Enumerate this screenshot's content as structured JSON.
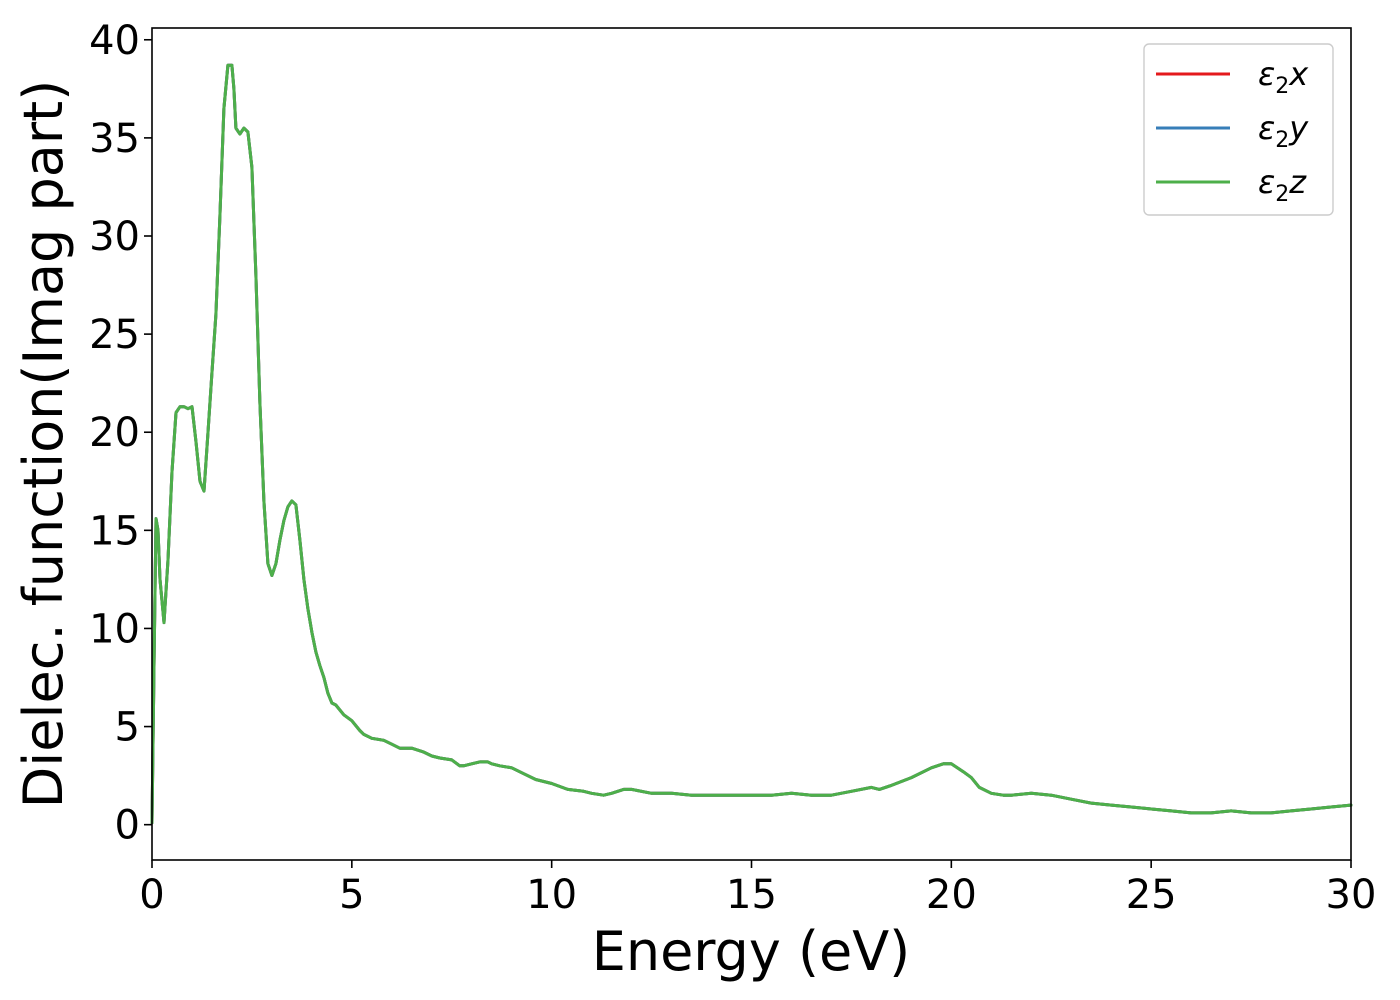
{
  "chart_data": {
    "type": "line",
    "xlabel": "Energy (eV)",
    "ylabel": "Dielec. function(Imag part)",
    "xlim": [
      0,
      30
    ],
    "ylim": [
      -1.8,
      40.6
    ],
    "xticks": [
      0,
      5,
      10,
      15,
      20,
      25,
      30
    ],
    "yticks": [
      0,
      5,
      10,
      15,
      20,
      25,
      30,
      35,
      40
    ],
    "grid": false,
    "legend_position": "top-right",
    "series": [
      {
        "name": "ε₂x",
        "label_base": "ε",
        "label_sub": "2",
        "label_var": "x",
        "color": "#e41a1c"
      },
      {
        "name": "ε₂y",
        "label_base": "ε",
        "label_sub": "2",
        "label_var": "y",
        "color": "#377eb8"
      },
      {
        "name": "ε₂z",
        "label_base": "ε",
        "label_sub": "2",
        "label_var": "z",
        "color": "#4daf4a"
      }
    ],
    "x": [
      0,
      0.05,
      0.1,
      0.15,
      0.2,
      0.3,
      0.4,
      0.5,
      0.6,
      0.7,
      0.8,
      0.9,
      1.0,
      1.1,
      1.2,
      1.3,
      1.4,
      1.5,
      1.6,
      1.7,
      1.8,
      1.9,
      2.0,
      2.05,
      2.1,
      2.2,
      2.3,
      2.4,
      2.5,
      2.6,
      2.7,
      2.8,
      2.9,
      3.0,
      3.1,
      3.2,
      3.3,
      3.4,
      3.5,
      3.6,
      3.7,
      3.8,
      3.9,
      4.0,
      4.1,
      4.2,
      4.3,
      4.4,
      4.5,
      4.6,
      4.8,
      5.0,
      5.2,
      5.3,
      5.5,
      5.8,
      6.0,
      6.2,
      6.5,
      6.8,
      7.0,
      7.2,
      7.5,
      7.7,
      7.8,
      8.0,
      8.2,
      8.4,
      8.5,
      8.7,
      9.0,
      9.3,
      9.6,
      10.0,
      10.4,
      10.8,
      11.0,
      11.3,
      11.5,
      11.8,
      12.0,
      12.5,
      13.0,
      13.5,
      14.0,
      14.5,
      15.0,
      15.5,
      16.0,
      16.5,
      17.0,
      17.5,
      18.0,
      18.2,
      18.5,
      19.0,
      19.5,
      19.8,
      20.0,
      20.3,
      20.5,
      20.7,
      21.0,
      21.3,
      21.5,
      22.0,
      22.5,
      23.0,
      23.5,
      24.0,
      24.5,
      25.0,
      25.5,
      26.0,
      26.5,
      27.0,
      27.5,
      28.0,
      28.5,
      29.0,
      29.5,
      30.0
    ],
    "values": [
      0.1,
      8.0,
      15.6,
      15.0,
      12.5,
      10.3,
      13.5,
      18.0,
      21.0,
      21.3,
      21.3,
      21.2,
      21.3,
      19.5,
      17.5,
      17.0,
      20.0,
      23.0,
      26.0,
      31.0,
      36.5,
      38.7,
      38.7,
      37.5,
      35.5,
      35.2,
      35.5,
      35.3,
      33.5,
      28.0,
      21.5,
      16.5,
      13.3,
      12.7,
      13.3,
      14.5,
      15.5,
      16.2,
      16.5,
      16.3,
      14.5,
      12.5,
      11.0,
      9.8,
      8.8,
      8.1,
      7.5,
      6.7,
      6.2,
      6.1,
      5.6,
      5.3,
      4.8,
      4.6,
      4.4,
      4.3,
      4.1,
      3.9,
      3.9,
      3.7,
      3.5,
      3.4,
      3.3,
      3.0,
      3.0,
      3.1,
      3.2,
      3.2,
      3.1,
      3.0,
      2.9,
      2.6,
      2.3,
      2.1,
      1.8,
      1.7,
      1.6,
      1.5,
      1.6,
      1.8,
      1.8,
      1.6,
      1.6,
      1.5,
      1.5,
      1.5,
      1.5,
      1.5,
      1.6,
      1.5,
      1.5,
      1.7,
      1.9,
      1.8,
      2.0,
      2.4,
      2.9,
      3.1,
      3.1,
      2.7,
      2.4,
      1.9,
      1.6,
      1.5,
      1.5,
      1.6,
      1.5,
      1.3,
      1.1,
      1.0,
      0.9,
      0.8,
      0.7,
      0.6,
      0.6,
      0.7,
      0.6,
      0.6,
      0.7,
      0.8,
      0.9,
      1.0
    ]
  }
}
